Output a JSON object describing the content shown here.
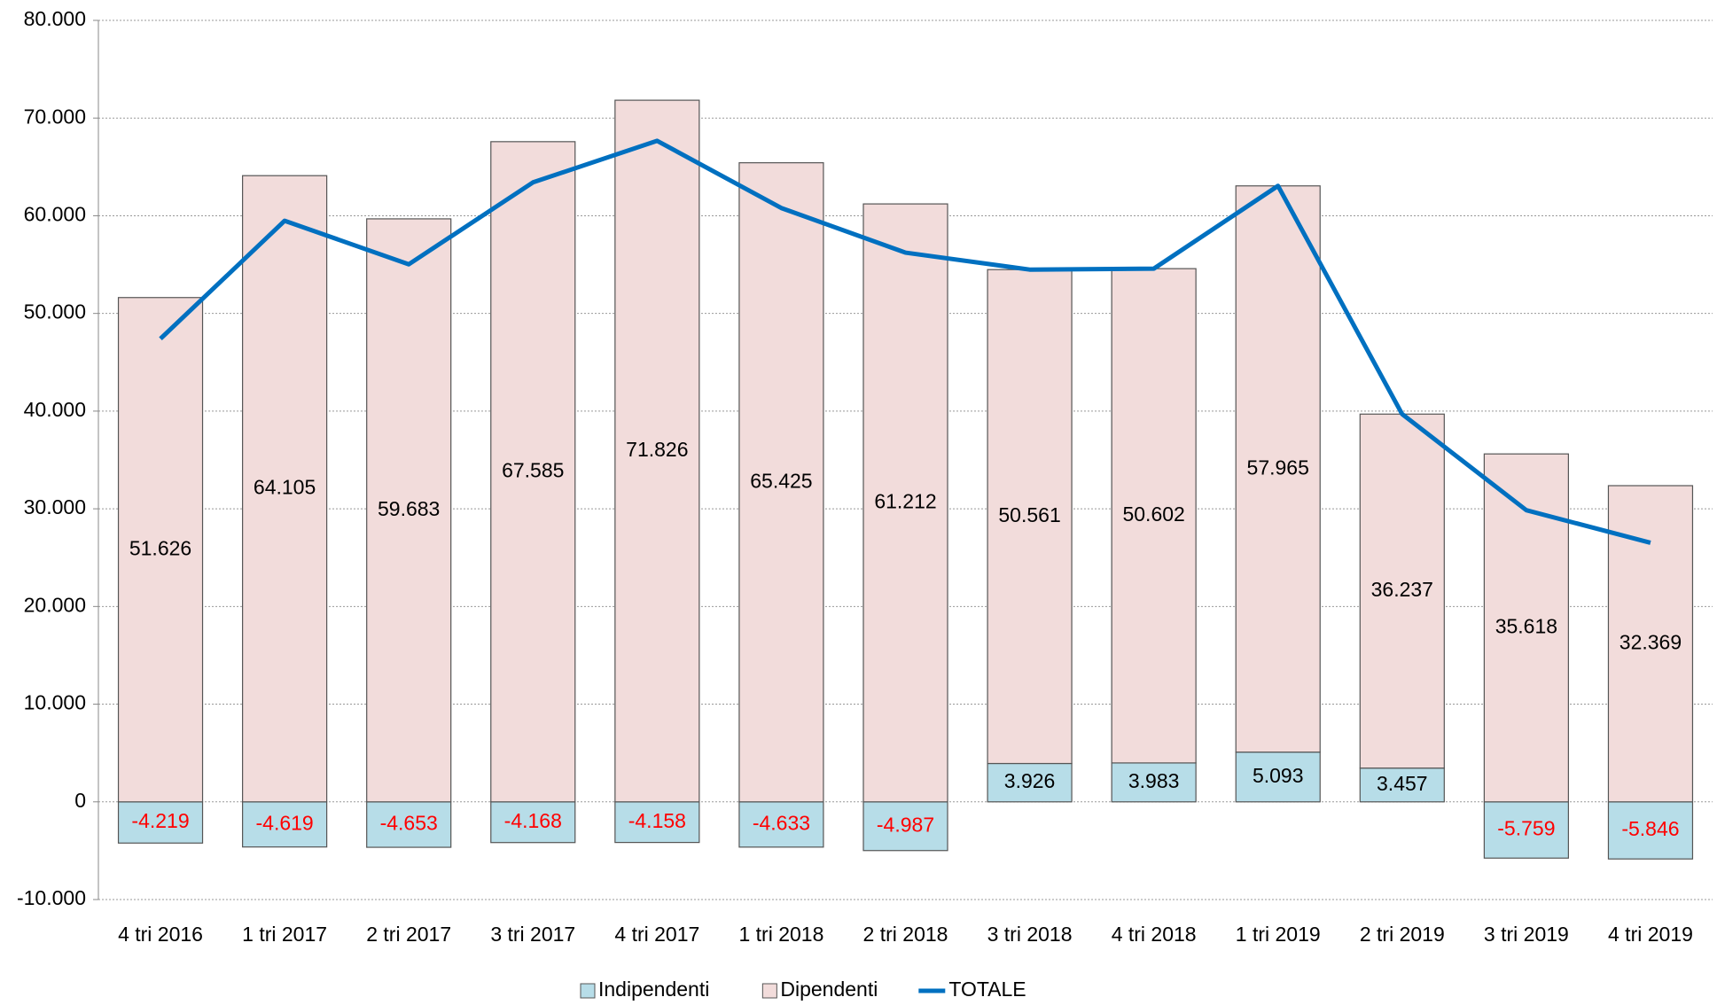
{
  "chart_data": {
    "type": "stacked_bar_line",
    "categories": [
      "4 tri 2016",
      "1 tri 2017",
      "2 tri 2017",
      "3 tri 2017",
      "4 tri 2017",
      "1 tri 2018",
      "2 tri 2018",
      "3 tri 2018",
      "4 tri 2018",
      "1 tri 2019",
      "2 tri 2019",
      "3 tri 2019",
      "4 tri 2019"
    ],
    "series": [
      {
        "name": "Indipendenti",
        "type": "bar",
        "color": "#b7dde8",
        "values": [
          -4219,
          -4619,
          -4653,
          -4168,
          -4158,
          -4633,
          -4987,
          3926,
          3983,
          5093,
          3457,
          -5759,
          -5846
        ],
        "value_labels": [
          "-4.219",
          "-4.619",
          "-4.653",
          "-4.168",
          "-4.158",
          "-4.633",
          "-4.987",
          "3.926",
          "3.983",
          "5.093",
          "3.457",
          "-5.759",
          "-5.846"
        ]
      },
      {
        "name": "Dipendenti",
        "type": "bar",
        "color": "#f2dcdb",
        "values": [
          51626,
          64105,
          59683,
          67585,
          71826,
          65425,
          61212,
          50561,
          50602,
          57965,
          36237,
          35618,
          32369
        ],
        "value_labels": [
          "51.626",
          "64.105",
          "59.683",
          "67.585",
          "71.826",
          "65.425",
          "61.212",
          "50.561",
          "50.602",
          "57.965",
          "36.237",
          "35.618",
          "32.369"
        ]
      },
      {
        "name": "TOTALE",
        "type": "line",
        "color": "#0070c0",
        "values": [
          47407,
          59486,
          55030,
          63417,
          67668,
          60792,
          56225,
          54487,
          54585,
          63058,
          39694,
          29859,
          26523
        ]
      }
    ],
    "ylim": [
      -10000,
      80000
    ],
    "yticks": [
      {
        "value": -10000,
        "label": "-10.000"
      },
      0,
      {
        "value": 10000,
        "label": "10.000"
      },
      {
        "value": 20000,
        "label": "20.000"
      },
      {
        "value": 30000,
        "label": "30.000"
      },
      {
        "value": 40000,
        "label": "40.000"
      },
      {
        "value": 50000,
        "label": "50.000"
      },
      {
        "value": 60000,
        "label": "60.000"
      },
      {
        "value": 70000,
        "label": "70.000"
      },
      {
        "value": 80000,
        "label": "80.000"
      }
    ],
    "grid": true,
    "legend": "bottom"
  }
}
